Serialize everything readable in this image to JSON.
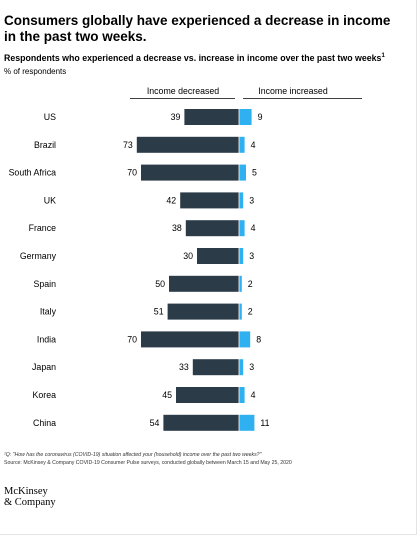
{
  "title": "Consumers globally have experienced a decrease in income in the past two weeks.",
  "subtitle": "Respondents who experienced a decrease vs. increase in income over the past two weeks",
  "subtitle_sup": "1",
  "unit_label": "% of respondents",
  "footnote": "¹Q: \"How has the coronavirus (COVID-19) situation affected your (household) income over the past two weeks?\"",
  "source": "Source: McKinsey & Company COVID-19 Consumer Pulse surveys, conducted globally between March 15 and May 25, 2020",
  "logo": {
    "line1": "McKinsey",
    "line2": "& Company"
  },
  "chart_data": {
    "type": "bar",
    "orientation": "horizontal-diverging",
    "categories": [
      "US",
      "Brazil",
      "South Africa",
      "UK",
      "France",
      "Germany",
      "Spain",
      "Italy",
      "India",
      "Japan",
      "Korea",
      "China"
    ],
    "series": [
      {
        "name": "Income decreased",
        "values": [
          39,
          73,
          70,
          42,
          38,
          30,
          50,
          51,
          70,
          33,
          45,
          54
        ],
        "color": "#2b3b48"
      },
      {
        "name": "Income increased",
        "values": [
          9,
          4,
          5,
          3,
          4,
          3,
          2,
          2,
          8,
          3,
          4,
          11
        ],
        "color": "#2fb0f0"
      }
    ],
    "grid": false,
    "legend": "top"
  }
}
